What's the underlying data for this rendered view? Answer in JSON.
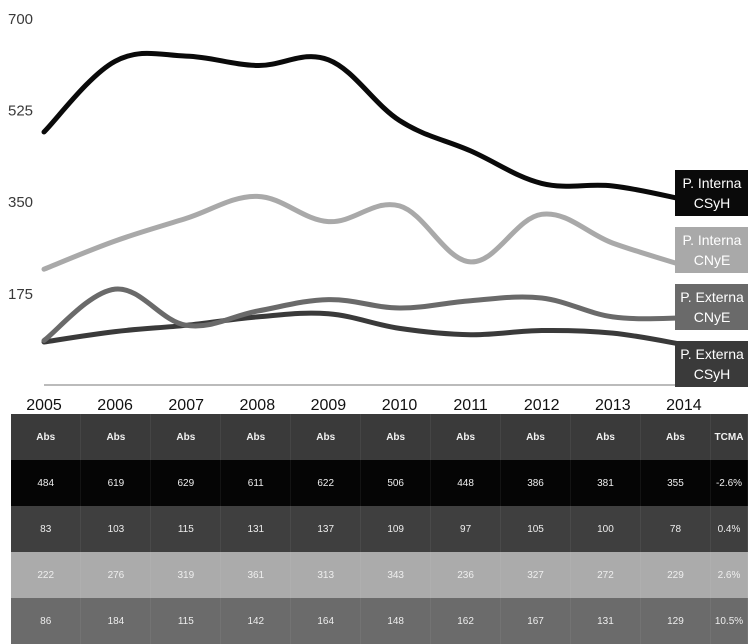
{
  "chart_data": {
    "type": "line",
    "x": [
      "2005",
      "2006",
      "2007",
      "2008",
      "2009",
      "2010",
      "2011",
      "2012",
      "2013",
      "2014"
    ],
    "ylim": [
      0,
      700
    ],
    "yticks": [
      "175",
      "350",
      "525",
      "700"
    ],
    "series": [
      {
        "name_lines": [
          "P. Interna",
          "CSyH"
        ],
        "color": "#0a0a0a",
        "values": [
          484,
          619,
          629,
          611,
          622,
          506,
          448,
          386,
          381,
          355
        ]
      },
      {
        "name_lines": [
          "P. Interna",
          "CNyE"
        ],
        "color": "#a9a9a9",
        "values": [
          222,
          276,
          319,
          361,
          313,
          343,
          236,
          327,
          272,
          229
        ]
      },
      {
        "name_lines": [
          "P. Externa",
          "CNyE"
        ],
        "color": "#6a6a6a",
        "values": [
          86,
          184,
          115,
          142,
          164,
          148,
          162,
          167,
          131,
          129
        ]
      },
      {
        "name_lines": [
          "P. Externa",
          "CSyH"
        ],
        "color": "#3a3a3a",
        "values": [
          83,
          103,
          115,
          131,
          137,
          109,
          97,
          105,
          100,
          78
        ]
      }
    ],
    "grid": false,
    "legend": "right end of each line"
  },
  "table": {
    "header": [
      "Abs",
      "Abs",
      "Abs",
      "Abs",
      "Abs",
      "Abs",
      "Abs",
      "Abs",
      "Abs",
      "Abs",
      "TCMA"
    ],
    "header_color": "#3a3a3a",
    "rows": [
      {
        "color": "#050505",
        "cells": [
          "484",
          "619",
          "629",
          "611",
          "622",
          "506",
          "448",
          "386",
          "381",
          "355",
          "-2.6%"
        ]
      },
      {
        "color": "#3f3f3f",
        "cells": [
          "83",
          "103",
          "115",
          "131",
          "137",
          "109",
          "97",
          "105",
          "100",
          "78",
          "0.4%"
        ]
      },
      {
        "color": "#ababab",
        "cells": [
          "222",
          "276",
          "319",
          "361",
          "313",
          "343",
          "236",
          "327",
          "272",
          "229",
          "2.6%"
        ]
      },
      {
        "color": "#6b6b6b",
        "cells": [
          "86",
          "184",
          "115",
          "142",
          "164",
          "148",
          "162",
          "167",
          "131",
          "129",
          "10.5%"
        ]
      }
    ]
  }
}
